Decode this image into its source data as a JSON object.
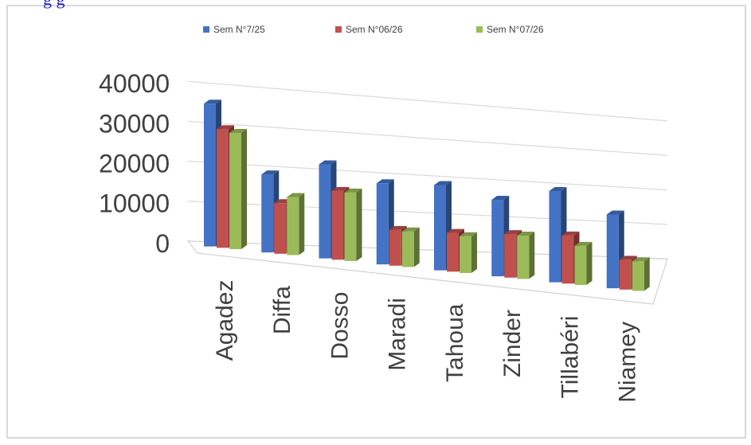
{
  "page": {
    "top_caption": "g                                                  g"
  },
  "chart_data": {
    "type": "bar",
    "title": "",
    "xlabel": "",
    "ylabel": "",
    "categories": [
      "Agadez",
      "Diffa",
      "Dosso",
      "Maradi",
      "Tahoua",
      "Zinder",
      "Tillabéri",
      "Niamey"
    ],
    "series": [
      {
        "name": "Sem N°7/25",
        "color": "#4472c4",
        "values": [
          36000,
          20000,
          24500,
          21500,
          23000,
          21000,
          25500,
          21000
        ]
      },
      {
        "name": "Sem N°06/26",
        "color": "#c0504d",
        "values": [
          30000,
          13000,
          18000,
          9500,
          10500,
          12000,
          13500,
          8500
        ]
      },
      {
        "name": "Sem N°07/26",
        "color": "#9bbb59",
        "values": [
          29500,
          15000,
          18000,
          9500,
          10000,
          12000,
          11000,
          8500
        ]
      }
    ],
    "y_ticks": [
      0,
      10000,
      20000,
      30000,
      40000
    ],
    "ylim": [
      0,
      40000
    ],
    "legend_position": "top",
    "grid": true,
    "style": "3d-perspective"
  }
}
